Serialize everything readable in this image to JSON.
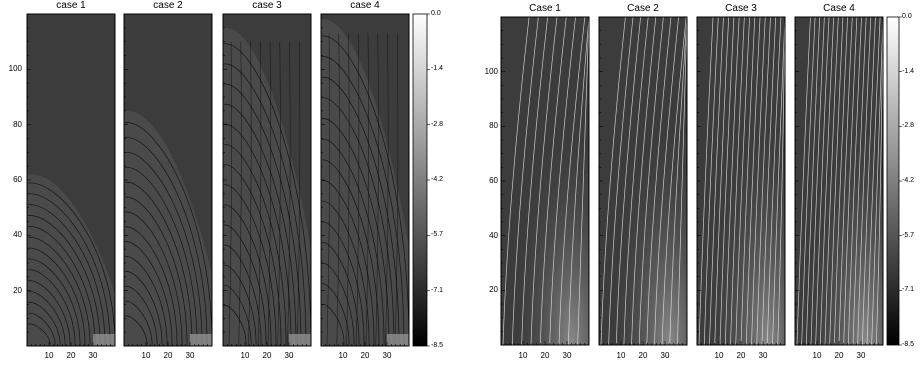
{
  "figures": [
    {
      "id": "left",
      "panel_titles": [
        "case 1",
        "case 2",
        "case 3",
        "case 4"
      ],
      "y_ticks": [
        "20",
        "40",
        "60",
        "80",
        "100"
      ],
      "x_ticks": [
        "10",
        "20",
        "30"
      ],
      "colorbar_ticks": [
        "0.0",
        "-1.4",
        "-2.8",
        "-4.2",
        "-5.7",
        "-7.1",
        "-8.5"
      ],
      "contour_color": "#0a0a0a"
    },
    {
      "id": "right",
      "panel_titles": [
        "Case 1",
        "Case 2",
        "Case 3",
        "Case 4"
      ],
      "y_ticks": [
        "20",
        "40",
        "60",
        "80",
        "100"
      ],
      "x_ticks": [
        "10",
        "20",
        "30"
      ],
      "colorbar_ticks": [
        "0.0",
        "-1.4",
        "-2.8",
        "-4.2",
        "-5.7",
        "-7.1",
        "-8.5"
      ],
      "contour_color": "#e6e6e6"
    }
  ],
  "colors": {
    "background": "#3c3c3c",
    "panel_border": "#000000",
    "colorbar_top": "#ffffff",
    "colorbar_bottom": "#000000"
  }
}
